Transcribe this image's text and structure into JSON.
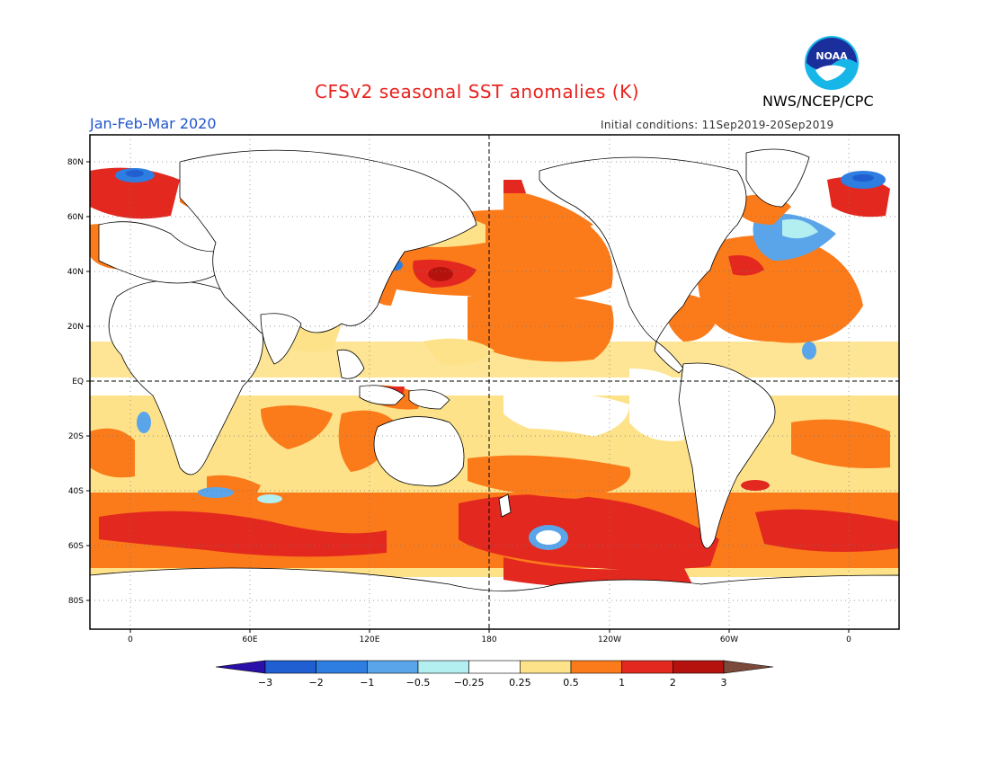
{
  "header": {
    "title": "CFSv2 seasonal SST anomalies (K)",
    "period": "Jan-Feb-Mar 2020",
    "initial_conditions": "Initial conditions: 11Sep2019-20Sep2019",
    "agency": "NWS/NCEP/CPC",
    "logo_text": "NOAA"
  },
  "map": {
    "projection": "cylindrical equidistant",
    "lon_range": [
      -20,
      360
    ],
    "lat_range": [
      -90,
      90
    ],
    "lat_ticks": [
      "80N",
      "60N",
      "40N",
      "20N",
      "EQ",
      "20S",
      "40S",
      "60S",
      "80S"
    ],
    "lon_ticks": [
      "0",
      "60E",
      "120E",
      "180",
      "120W",
      "60W",
      "0"
    ],
    "grid": "dotted",
    "reference_lines": [
      "equator",
      "180 meridian"
    ]
  },
  "colorbar": {
    "labels": [
      "-3",
      "-2",
      "-1",
      "-0.5",
      "-0.25",
      "0.25",
      "0.5",
      "1",
      "2",
      "3"
    ],
    "colors": [
      "#2a0fa8",
      "#1f5fd1",
      "#2e7de0",
      "#5aa5ea",
      "#b3eef0",
      "#ffffff",
      "#fde28a",
      "#fb7a1a",
      "#e3281f",
      "#b5120e",
      "#7b4a3a"
    ],
    "units": "K"
  },
  "colors": {
    "title": "#e8231f",
    "period": "#2255cc",
    "land": "#ffffff",
    "coast": "#000000"
  }
}
